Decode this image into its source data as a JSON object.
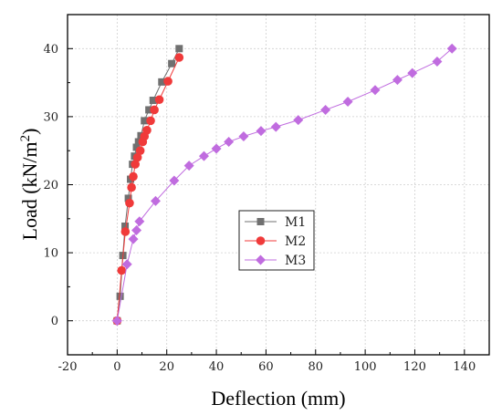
{
  "chart_data": {
    "type": "line",
    "xlabel": "Deflection (mm)",
    "ylabel_main": "Load (kN/m",
    "ylabel_sup": "2",
    "ylabel_close": ")",
    "xlim": [
      -20,
      150
    ],
    "ylim": [
      -5,
      45
    ],
    "xticks": [
      -20,
      0,
      20,
      40,
      60,
      80,
      100,
      120,
      140
    ],
    "yticks": [
      0,
      10,
      20,
      30,
      40
    ],
    "grid": true,
    "legend_position": "center",
    "series": [
      {
        "name": "M1",
        "color": "#707070",
        "marker": "square",
        "x": [
          0,
          1.2,
          2.3,
          3.2,
          4.5,
          5.4,
          6.2,
          7.0,
          7.8,
          8.6,
          9.6,
          11.0,
          12.8,
          14.5,
          18.0,
          22.0,
          25.0
        ],
        "y": [
          0,
          3.6,
          9.6,
          13.9,
          18.0,
          20.8,
          23.0,
          24.2,
          25.5,
          26.3,
          27.2,
          29.4,
          31.0,
          32.4,
          35.1,
          37.8,
          40.0
        ]
      },
      {
        "name": "M2",
        "color": "#f03a3a",
        "marker": "circle",
        "x": [
          0,
          1.8,
          3.3,
          5.0,
          5.8,
          6.5,
          7.3,
          8.2,
          9.3,
          10.3,
          11.0,
          12.0,
          13.5,
          15.0,
          17.0,
          20.5,
          25.0
        ],
        "y": [
          0,
          7.4,
          13.1,
          17.3,
          19.6,
          21.2,
          23.0,
          24.0,
          25.0,
          26.3,
          27.1,
          28.0,
          29.4,
          31.0,
          32.5,
          35.2,
          38.7
        ]
      },
      {
        "name": "M3",
        "color": "#c06cdf",
        "marker": "diamond",
        "x": [
          0,
          4.0,
          6.5,
          7.8,
          9.0,
          15.5,
          23.0,
          29.0,
          35.0,
          40.0,
          45.0,
          51.0,
          58.0,
          64.0,
          73.0,
          84.0,
          93.0,
          104.0,
          113.0,
          119.0,
          129.0,
          135.0
        ],
        "y": [
          0,
          8.3,
          12.0,
          13.3,
          14.6,
          17.6,
          20.6,
          22.8,
          24.2,
          25.3,
          26.3,
          27.1,
          27.9,
          28.5,
          29.5,
          31.0,
          32.2,
          33.9,
          35.4,
          36.4,
          38.1,
          40.0
        ]
      }
    ]
  }
}
